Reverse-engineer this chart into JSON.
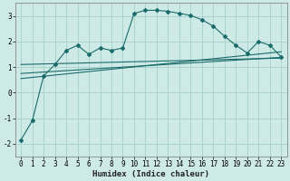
{
  "background_color": "#ceeae6",
  "grid_color": "#aad4ce",
  "line_color": "#1a6b6b",
  "xlabel": "Humidex (Indice chaleur)",
  "xlim": [
    -0.5,
    23.5
  ],
  "ylim": [
    -2.5,
    3.5
  ],
  "yticks": [
    -2,
    -1,
    0,
    1,
    2,
    3
  ],
  "xticks": [
    0,
    1,
    2,
    3,
    4,
    5,
    6,
    7,
    8,
    9,
    10,
    11,
    12,
    13,
    14,
    15,
    16,
    17,
    18,
    19,
    20,
    21,
    22,
    23
  ],
  "main_x": [
    0,
    1,
    2,
    3,
    4,
    5,
    6,
    7,
    8,
    9,
    10,
    11,
    12,
    13,
    14,
    15,
    16,
    17,
    18,
    19,
    20,
    21,
    22,
    23
  ],
  "main_y": [
    -1.85,
    -1.1,
    0.65,
    1.1,
    1.65,
    1.85,
    1.5,
    1.75,
    1.65,
    1.75,
    3.1,
    3.22,
    3.22,
    3.18,
    3.1,
    3.02,
    2.85,
    2.6,
    2.2,
    1.85,
    1.55,
    2.0,
    1.85,
    1.4
  ],
  "line1_x": [
    0,
    23
  ],
  "line1_y": [
    1.1,
    1.35
  ],
  "line2_x": [
    0,
    23
  ],
  "line2_y": [
    0.75,
    1.38
  ],
  "line3_x": [
    0,
    23
  ],
  "line3_y": [
    0.55,
    1.6
  ],
  "marker_style": "D",
  "marker_size": 2.0,
  "line_width": 0.8,
  "tick_fontsize": 5.5
}
